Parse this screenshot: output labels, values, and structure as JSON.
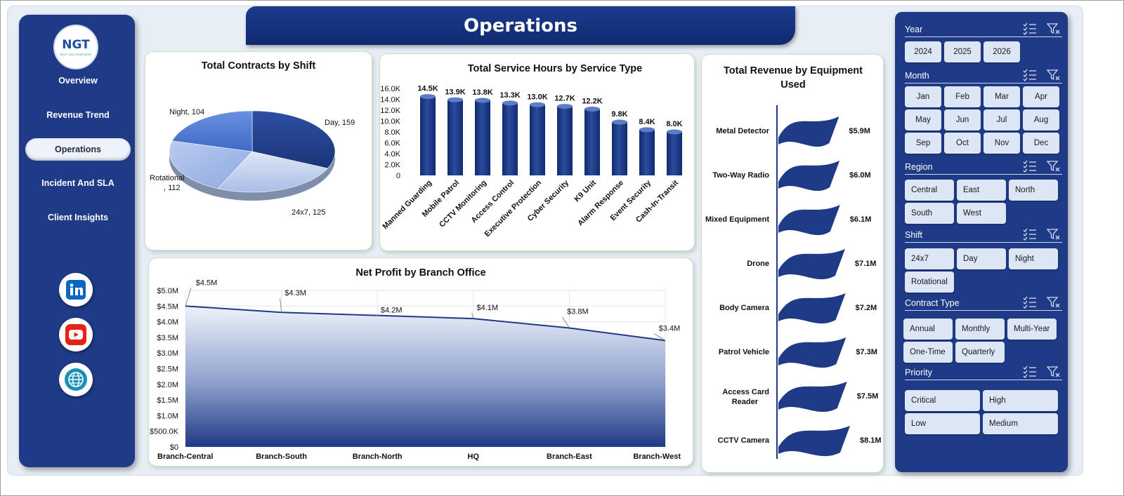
{
  "header": {
    "title": "Operations"
  },
  "logo": {
    "text": "NGT",
    "subtext": "NEXT GEN TEMPLATES"
  },
  "nav": {
    "items": [
      "Overview",
      "Revenue Trend",
      "Operations",
      "Incident And SLA",
      "Client Insights"
    ],
    "active": "Operations"
  },
  "social": [
    "linkedin-icon",
    "youtube-icon",
    "globe-icon"
  ],
  "colors": {
    "navy": "#1f3a86",
    "bar": "#1f3a86",
    "accent": "#2a9d8f"
  },
  "charts": {
    "contracts": {
      "title": "Total Contracts by Shift"
    },
    "service_hours": {
      "title": "Total Service Hours by Service Type"
    },
    "revenue": {
      "title": "Total Revenue  by Equipment Used"
    },
    "profit": {
      "title": "Net Profit by Branch  Office"
    }
  },
  "chart_data": [
    {
      "type": "pie",
      "title": "Total Contracts by Shift",
      "slices": [
        {
          "label": "Day",
          "value": 159,
          "text": "Day, 159"
        },
        {
          "label": "24x7",
          "value": 125,
          "text": "24x7, 125"
        },
        {
          "label": "Rotational",
          "value": 112,
          "text": "Rotational\n, 112"
        },
        {
          "label": "Night",
          "value": 104,
          "text": "Night, 104"
        }
      ]
    },
    {
      "type": "bar",
      "title": "Total Service Hours by Service Type",
      "categories": [
        "Manned Guarding",
        "Mobile Patrol",
        "CCTV Monitoring",
        "Access Control",
        "Executive Protection",
        "Cyber Security",
        "K9 Unit",
        "Alarm Response",
        "Event Security",
        "Cash-In-Transit"
      ],
      "values": [
        14500,
        13900,
        13800,
        13300,
        13000,
        12700,
        12200,
        9800,
        8400,
        8000
      ],
      "labels": [
        "14.5K",
        "13.9K",
        "13.8K",
        "13.3K",
        "13.0K",
        "12.7K",
        "12.2K",
        "9.8K",
        "8.4K",
        "8.0K"
      ],
      "yticks": [
        "16.0K",
        "14.0K",
        "12.0K",
        "10.0K",
        "8.0K",
        "6.0K",
        "4.0K",
        "2.0K",
        "0"
      ],
      "ylim": [
        0,
        16000
      ]
    },
    {
      "type": "bar",
      "title": "Total Revenue  by Equipment Used",
      "categories": [
        "Metal Detector",
        "Two-Way Radio",
        "Mixed Equipment",
        "Drone",
        "Body Camera",
        "Patrol Vehicle",
        "Access Card Reader",
        "CCTV Camera"
      ],
      "values": [
        5.9,
        6.0,
        6.1,
        7.1,
        7.2,
        7.3,
        7.5,
        8.1
      ],
      "labels": [
        "$5.9M",
        "$6.0M",
        "$6.1M",
        "$7.1M",
        "$7.2M",
        "$7.3M",
        "$7.5M",
        "$8.1M"
      ]
    },
    {
      "type": "area",
      "title": "Net Profit by Branch  Office",
      "categories": [
        "Branch-Central",
        "Branch-South",
        "Branch-North",
        "HQ",
        "Branch-East",
        "Branch-West"
      ],
      "values": [
        4.5,
        4.3,
        4.2,
        4.1,
        3.8,
        3.4
      ],
      "labels": [
        "$4.5M",
        "$4.3M",
        "$4.2M",
        "$4.1M",
        "$3.8M",
        "$3.4M"
      ],
      "yticks": [
        "$5.0M",
        "$4.5M",
        "$4.0M",
        "$3.5M",
        "$3.0M",
        "$2.5M",
        "$2.0M",
        "$1.5M",
        "$1.0M",
        "$500.0K",
        "$0"
      ],
      "ylim": [
        0,
        5.0
      ]
    }
  ],
  "slicers": [
    {
      "name": "Year",
      "options": [
        "2024",
        "2025",
        "2026"
      ]
    },
    {
      "name": "Month",
      "options": [
        "Jan",
        "Feb",
        "Mar",
        "Apr",
        "May",
        "Jun",
        "Jul",
        "Aug",
        "Sep",
        "Oct",
        "Nov",
        "Dec"
      ]
    },
    {
      "name": "Region",
      "options": [
        "Central",
        "East",
        "North",
        "South",
        "West"
      ]
    },
    {
      "name": "Shift",
      "options": [
        "24x7",
        "Day",
        "Night",
        "Rotational"
      ]
    },
    {
      "name": "Contract Type",
      "options": [
        "Annual",
        "Monthly",
        "Multi-Year",
        "One-Time",
        "Quarterly"
      ]
    },
    {
      "name": "Priority",
      "options": [
        "Critical",
        "High",
        "Low",
        "Medium"
      ]
    }
  ]
}
